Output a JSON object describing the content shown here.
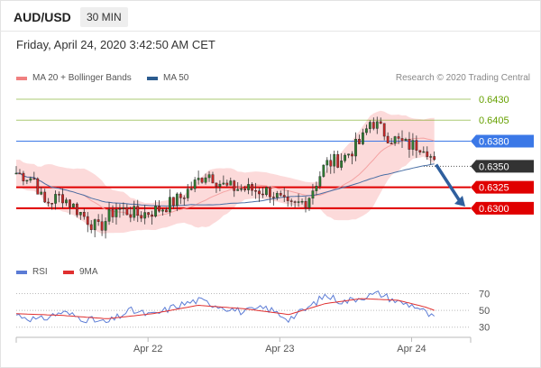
{
  "header": {
    "symbol": "AUD/USD",
    "timeframe": "30 MIN"
  },
  "date_text": "Friday, April 24, 2020 3:42:50 AM CET",
  "legend": {
    "ma20": {
      "label": "MA 20 + Bollinger Bands",
      "color": "#f08080"
    },
    "ma50": {
      "label": "MA 50",
      "color": "#2c5c8f"
    },
    "rsi": {
      "label": "RSI",
      "color": "#5b7bd5"
    },
    "ma9": {
      "label": "9MA",
      "color": "#e03030"
    }
  },
  "credit": "Research © 2020 Trading Central",
  "chart_data": [
    {
      "type": "candlestick",
      "name": "price",
      "ylim": [
        0.6245,
        0.6445
      ],
      "levels": [
        {
          "value": 0.643,
          "label": "0.6430",
          "kind": "resistance-far",
          "color": "#66a000"
        },
        {
          "value": 0.6405,
          "label": "0.6405",
          "kind": "resistance-near",
          "color": "#66a000"
        },
        {
          "value": 0.638,
          "label": "0.6380",
          "kind": "pivot",
          "color": "#3b78e7"
        },
        {
          "value": 0.635,
          "label": "0.6350",
          "kind": "last-price",
          "color": "#333333"
        },
        {
          "value": 0.6325,
          "label": "0.6325",
          "kind": "support-1",
          "color": "#e00000"
        },
        {
          "value": 0.63,
          "label": "0.6300",
          "kind": "support-2",
          "color": "#e00000"
        }
      ],
      "x_ticks": [
        {
          "label": "Apr 22",
          "pos": 0.29
        },
        {
          "label": "Apr 23",
          "pos": 0.58
        },
        {
          "label": "Apr 24",
          "pos": 0.87
        }
      ],
      "bias_arrow": {
        "from_value": 0.6352,
        "to_value": 0.6302,
        "color": "#2f5f9e"
      },
      "waypoints": [
        [
          0,
          0.6342
        ],
        [
          0.04,
          0.6335
        ],
        [
          0.06,
          0.6305
        ],
        [
          0.1,
          0.6315
        ],
        [
          0.14,
          0.6295
        ],
        [
          0.18,
          0.6275
        ],
        [
          0.22,
          0.63
        ],
        [
          0.27,
          0.6292
        ],
        [
          0.32,
          0.63
        ],
        [
          0.36,
          0.6312
        ],
        [
          0.42,
          0.6343
        ],
        [
          0.46,
          0.6325
        ],
        [
          0.52,
          0.6322
        ],
        [
          0.56,
          0.632
        ],
        [
          0.6,
          0.63
        ],
        [
          0.64,
          0.631
        ],
        [
          0.68,
          0.6352
        ],
        [
          0.72,
          0.636
        ],
        [
          0.76,
          0.638
        ],
        [
          0.78,
          0.6405
        ],
        [
          0.82,
          0.6385
        ],
        [
          0.86,
          0.6375
        ],
        [
          0.9,
          0.6375
        ],
        [
          0.92,
          0.6352
        ]
      ]
    },
    {
      "type": "line",
      "name": "rsi",
      "ylim": [
        20,
        78
      ],
      "ticks": [
        70,
        50,
        30
      ],
      "waypoints": [
        [
          0,
          45
        ],
        [
          0.05,
          38
        ],
        [
          0.1,
          48
        ],
        [
          0.15,
          40
        ],
        [
          0.2,
          35
        ],
        [
          0.25,
          50
        ],
        [
          0.3,
          44
        ],
        [
          0.35,
          55
        ],
        [
          0.4,
          62
        ],
        [
          0.45,
          55
        ],
        [
          0.5,
          48
        ],
        [
          0.55,
          53
        ],
        [
          0.6,
          40
        ],
        [
          0.64,
          52
        ],
        [
          0.68,
          68
        ],
        [
          0.72,
          60
        ],
        [
          0.76,
          66
        ],
        [
          0.8,
          70
        ],
        [
          0.84,
          60
        ],
        [
          0.88,
          55
        ],
        [
          0.92,
          40
        ]
      ],
      "ma9_waypoints": [
        [
          0,
          46
        ],
        [
          0.1,
          44
        ],
        [
          0.2,
          40
        ],
        [
          0.3,
          46
        ],
        [
          0.4,
          56
        ],
        [
          0.5,
          52
        ],
        [
          0.6,
          45
        ],
        [
          0.68,
          58
        ],
        [
          0.76,
          64
        ],
        [
          0.84,
          62
        ],
        [
          0.9,
          54
        ],
        [
          0.92,
          50
        ]
      ]
    }
  ]
}
